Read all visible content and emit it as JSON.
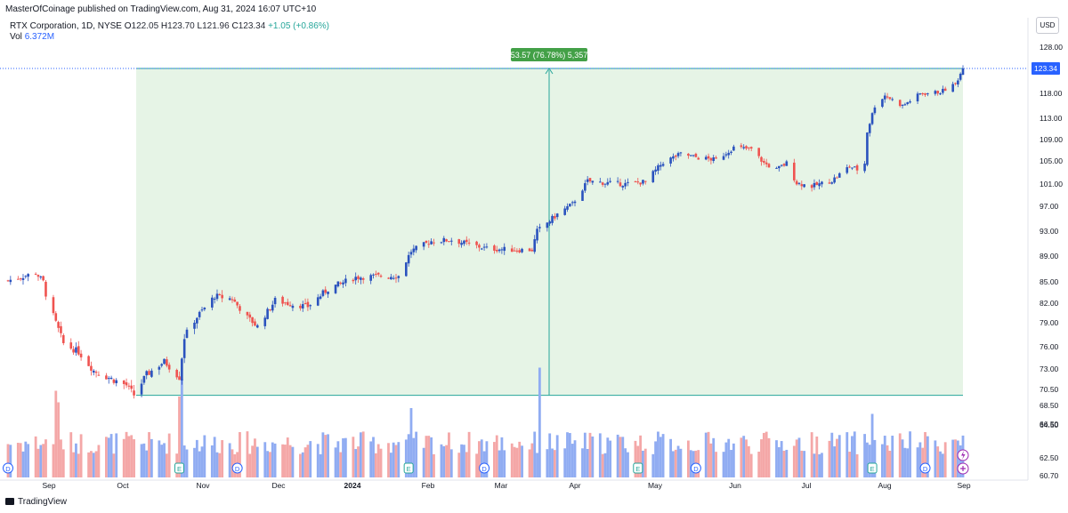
{
  "header": {
    "published": "MasterOfCoinage published on TradingView.com, Aug 31, 2024 16:07 UTC+10"
  },
  "legend": {
    "symbol": "RTX Corporation, 1D, NYSE",
    "open_label": "O",
    "open": "122.05",
    "high_label": "H",
    "high": "123.70",
    "low_label": "L",
    "low": "121.96",
    "close_label": "C",
    "close": "123.34",
    "change": "+1.05 (+0.86%)",
    "vol_label": "Vol",
    "vol": "6.372M"
  },
  "currency": "USD",
  "footer": {
    "brand": "TradingView"
  },
  "colors": {
    "up": "#2a52be",
    "down": "#ef5350",
    "vol_up": "#90acf2",
    "vol_down": "#f4a7a7",
    "range_fill": "#e6f4e6",
    "range_line": "#26a69a",
    "range_label_bg": "#43a047",
    "price_line": "#2962ff"
  },
  "chart_data": {
    "type": "candlestick",
    "y_ticks": [
      "60.70",
      "62.50",
      "64.50",
      "66.50",
      "68.50",
      "70.50",
      "73.00",
      "76.00",
      "79.00",
      "82.00",
      "85.00",
      "89.00",
      "93.00",
      "97.00",
      "101.00",
      "105.00",
      "109.00",
      "113.00",
      "118.00",
      "123.34",
      "128.00"
    ],
    "x_ticks": [
      "Sep",
      "Oct",
      "Nov",
      "Dec",
      "2024",
      "Feb",
      "Mar",
      "Apr",
      "May",
      "Jun",
      "Jul",
      "Aug",
      "Sep"
    ],
    "last_price": "123.34",
    "measure_label": "53.57 (76.78%) 5,357",
    "measure": {
      "from_date": "2023-10-06",
      "to_date": "2024-08-30",
      "low": 69.77,
      "high": 123.34
    },
    "event_markers": [
      {
        "label": "D",
        "date": "2023-08-17"
      },
      {
        "label": "E",
        "date": "2023-10-24"
      },
      {
        "label": "D",
        "date": "2023-11-16"
      },
      {
        "label": "E",
        "date": "2024-01-23"
      },
      {
        "label": "D",
        "date": "2024-02-22"
      },
      {
        "label": "E",
        "date": "2024-04-23"
      },
      {
        "label": "D",
        "date": "2024-05-16"
      },
      {
        "label": "E",
        "date": "2024-07-25"
      },
      {
        "label": "D",
        "date": "2024-08-15"
      }
    ],
    "anchors": [
      [
        "2023-08-17",
        85.2
      ],
      [
        "2023-08-28",
        86.4
      ],
      [
        "2023-08-31",
        85.0
      ],
      [
        "2023-09-01",
        83.3
      ],
      [
        "2023-09-05",
        79.0
      ],
      [
        "2023-09-08",
        76.4
      ],
      [
        "2023-09-14",
        75.3
      ],
      [
        "2023-09-20",
        72.8
      ],
      [
        "2023-09-27",
        71.8
      ],
      [
        "2023-10-03",
        71.0
      ],
      [
        "2023-10-06",
        69.8
      ],
      [
        "2023-10-11",
        72.3
      ],
      [
        "2023-10-18",
        74.0
      ],
      [
        "2023-10-24",
        72.0
      ],
      [
        "2023-10-26",
        77.2
      ],
      [
        "2023-11-01",
        80.4
      ],
      [
        "2023-11-07",
        83.0
      ],
      [
        "2023-11-14",
        82.6
      ],
      [
        "2023-11-20",
        79.8
      ],
      [
        "2023-11-24",
        78.5
      ],
      [
        "2023-12-01",
        82.4
      ],
      [
        "2023-12-08",
        81.8
      ],
      [
        "2023-12-14",
        81.5
      ],
      [
        "2023-12-22",
        84.0
      ],
      [
        "2024-01-02",
        85.7
      ],
      [
        "2024-01-12",
        85.9
      ],
      [
        "2024-01-19",
        85.9
      ],
      [
        "2024-01-24",
        89.8
      ],
      [
        "2024-02-01",
        91.4
      ],
      [
        "2024-02-09",
        91.6
      ],
      [
        "2024-02-15",
        91.0
      ],
      [
        "2024-02-23",
        90.2
      ],
      [
        "2024-03-05",
        90.0
      ],
      [
        "2024-03-12",
        90.0
      ],
      [
        "2024-03-14",
        93.0
      ],
      [
        "2024-03-22",
        95.7
      ],
      [
        "2024-03-28",
        97.4
      ],
      [
        "2024-04-03",
        101.5
      ],
      [
        "2024-04-10",
        101.2
      ],
      [
        "2024-04-18",
        101.0
      ],
      [
        "2024-04-26",
        101.4
      ],
      [
        "2024-05-03",
        104.8
      ],
      [
        "2024-05-10",
        106.3
      ],
      [
        "2024-05-17",
        105.6
      ],
      [
        "2024-05-24",
        105.2
      ],
      [
        "2024-05-31",
        107.5
      ],
      [
        "2024-06-07",
        107.2
      ],
      [
        "2024-06-12",
        104.6
      ],
      [
        "2024-06-17",
        103.5
      ],
      [
        "2024-06-21",
        104.6
      ],
      [
        "2024-06-25",
        101.2
      ],
      [
        "2024-07-01",
        100.6
      ],
      [
        "2024-07-09",
        101.6
      ],
      [
        "2024-07-16",
        104.1
      ],
      [
        "2024-07-19",
        103.5
      ],
      [
        "2024-07-22",
        104.6
      ],
      [
        "2024-07-23",
        110.5
      ],
      [
        "2024-07-26",
        115.5
      ],
      [
        "2024-07-30",
        117.6
      ],
      [
        "2024-08-06",
        115.5
      ],
      [
        "2024-08-13",
        117.9
      ],
      [
        "2024-08-21",
        118.3
      ],
      [
        "2024-08-27",
        120.0
      ],
      [
        "2024-08-30",
        123.34
      ]
    ],
    "volume_millions": {
      "min": 0,
      "max": 20,
      "spikes": {
        "2023-09-05": 15,
        "2023-09-06": 13,
        "2023-10-24": 14,
        "2023-10-25": 17,
        "2024-01-24": 12,
        "2024-03-15": 19,
        "2024-07-25": 11
      }
    }
  }
}
